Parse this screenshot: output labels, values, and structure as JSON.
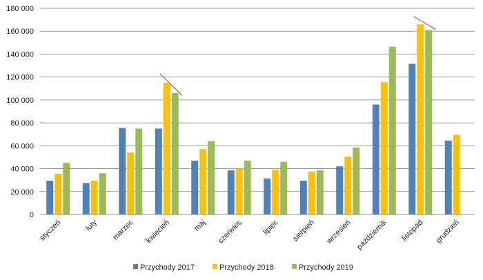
{
  "chart_data": {
    "type": "bar",
    "categories": [
      "styczeń",
      "luty",
      "marzec",
      "kwiecień",
      "maj",
      "czerwiec",
      "lipiec",
      "sierpień",
      "wrzesień",
      "październik",
      "listopad",
      "grudzień"
    ],
    "series": [
      {
        "name": "Przychody 2017",
        "color": "#4F81BD",
        "values": [
          29500,
          27500,
          75500,
          75000,
          47000,
          38500,
          31500,
          29500,
          42000,
          96000,
          131500,
          64500
        ]
      },
      {
        "name": "Przychody 2018",
        "color": "#FFC000",
        "values": [
          35500,
          29500,
          54000,
          115000,
          57000,
          40000,
          39000,
          37500,
          50500,
          115500,
          166000,
          69500
        ]
      },
      {
        "name": "Przychody 2019",
        "color": "#9BBB59",
        "values": [
          45000,
          36000,
          75000,
          106000,
          64000,
          47000,
          46000,
          38500,
          58500,
          146500,
          161000,
          null
        ]
      }
    ],
    "ylim": [
      0,
      180000
    ],
    "yticks": [
      0,
      20000,
      40000,
      60000,
      80000,
      100000,
      120000,
      140000,
      160000,
      180000
    ],
    "ytick_labels": [
      "0",
      "20 000",
      "40 000",
      "60 000",
      "80 000",
      "100 000",
      "120 000",
      "140 000",
      "160 000",
      "180 000"
    ],
    "grid": true,
    "legend_position": "bottom",
    "annotations": [
      {
        "type": "line",
        "color": "#C0392B",
        "from": {
          "category": "kwiecień",
          "value": 123000
        },
        "to": {
          "category": "kwiecień",
          "value": 104000
        }
      },
      {
        "type": "line",
        "color": "#C0392B",
        "from": {
          "category": "listopad",
          "value": 173000
        },
        "to": {
          "category": "listopad",
          "value": 161500
        }
      }
    ]
  }
}
